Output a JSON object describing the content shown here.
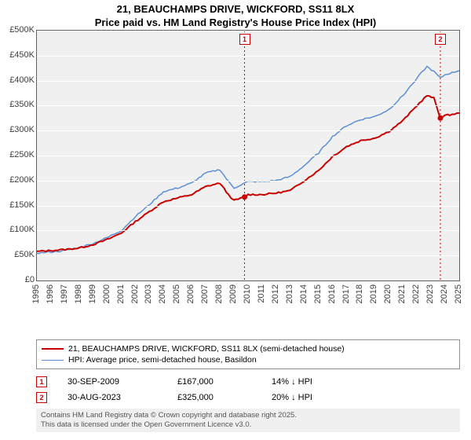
{
  "title_line1": "21, BEAUCHAMPS DRIVE, WICKFORD, SS11 8LX",
  "title_line2": "Price paid vs. HM Land Registry's House Price Index (HPI)",
  "chart": {
    "type": "line",
    "background_color": "#f0f0f0",
    "grid_color": "#ffffff",
    "border_color": "#606060",
    "ylim": [
      0,
      500000
    ],
    "ytick_step": 50000,
    "yticks": [
      "£0",
      "£50K",
      "£100K",
      "£150K",
      "£200K",
      "£250K",
      "£300K",
      "£350K",
      "£400K",
      "£450K",
      "£500K"
    ],
    "xlim": [
      1995,
      2025
    ],
    "xticks": [
      1995,
      1996,
      1997,
      1998,
      1999,
      2000,
      2001,
      2002,
      2003,
      2004,
      2005,
      2006,
      2007,
      2008,
      2009,
      2010,
      2011,
      2012,
      2013,
      2014,
      2015,
      2016,
      2017,
      2018,
      2019,
      2020,
      2021,
      2022,
      2023,
      2024,
      2025
    ],
    "axis_font_size": 11,
    "axis_color": "#404040",
    "series": [
      {
        "name": "price_paid",
        "label": "21, BEAUCHAMPS DRIVE, WICKFORD, SS11 8LX (semi-detached house)",
        "color": "#c80000",
        "line_width": 2,
        "points": [
          [
            1995,
            58000
          ],
          [
            1996,
            60000
          ],
          [
            1997,
            62000
          ],
          [
            1998,
            65000
          ],
          [
            1999,
            72000
          ],
          [
            2000,
            82000
          ],
          [
            2001,
            95000
          ],
          [
            2002,
            118000
          ],
          [
            2003,
            138000
          ],
          [
            2004,
            158000
          ],
          [
            2005,
            165000
          ],
          [
            2006,
            172000
          ],
          [
            2007,
            188000
          ],
          [
            2008,
            195000
          ],
          [
            2008.6,
            172000
          ],
          [
            2009,
            160000
          ],
          [
            2009.75,
            167000
          ],
          [
            2010,
            172000
          ],
          [
            2011,
            172000
          ],
          [
            2012,
            175000
          ],
          [
            2013,
            180000
          ],
          [
            2014,
            200000
          ],
          [
            2015,
            220000
          ],
          [
            2016,
            248000
          ],
          [
            2017,
            268000
          ],
          [
            2018,
            280000
          ],
          [
            2019,
            285000
          ],
          [
            2020,
            298000
          ],
          [
            2021,
            320000
          ],
          [
            2022,
            350000
          ],
          [
            2022.7,
            370000
          ],
          [
            2023.2,
            365000
          ],
          [
            2023.66,
            325000
          ],
          [
            2024,
            330000
          ],
          [
            2025,
            335000
          ]
        ]
      },
      {
        "name": "hpi",
        "label": "HPI: Average price, semi-detached house, Basildon",
        "color": "#5b8fd6",
        "line_width": 1.5,
        "points": [
          [
            1995,
            55000
          ],
          [
            1996,
            57000
          ],
          [
            1997,
            60000
          ],
          [
            1998,
            66000
          ],
          [
            1999,
            74000
          ],
          [
            2000,
            86000
          ],
          [
            2001,
            100000
          ],
          [
            2002,
            128000
          ],
          [
            2003,
            152000
          ],
          [
            2004,
            178000
          ],
          [
            2005,
            185000
          ],
          [
            2006,
            195000
          ],
          [
            2007,
            215000
          ],
          [
            2008,
            222000
          ],
          [
            2008.6,
            198000
          ],
          [
            2009,
            185000
          ],
          [
            2010,
            198000
          ],
          [
            2011,
            198000
          ],
          [
            2012,
            200000
          ],
          [
            2013,
            208000
          ],
          [
            2014,
            230000
          ],
          [
            2015,
            255000
          ],
          [
            2016,
            288000
          ],
          [
            2017,
            310000
          ],
          [
            2018,
            322000
          ],
          [
            2019,
            328000
          ],
          [
            2020,
            342000
          ],
          [
            2021,
            370000
          ],
          [
            2022,
            405000
          ],
          [
            2022.7,
            428000
          ],
          [
            2023.2,
            418000
          ],
          [
            2023.66,
            405000
          ],
          [
            2024,
            412000
          ],
          [
            2025,
            420000
          ]
        ]
      }
    ],
    "vlines": [
      {
        "x": 2009.75,
        "color": "#c80000",
        "label": "1"
      },
      {
        "x": 2023.66,
        "color": "#c80000",
        "label": "2"
      }
    ]
  },
  "legend": {
    "border_color": "#909090",
    "items": [
      {
        "color": "#c80000",
        "width": 2,
        "label_ref": 0
      },
      {
        "color": "#5b8fd6",
        "width": 1.5,
        "label_ref": 1
      }
    ]
  },
  "events": [
    {
      "n": "1",
      "color": "#c80000",
      "date": "30-SEP-2009",
      "price": "£167,000",
      "delta": "14% ↓ HPI"
    },
    {
      "n": "2",
      "color": "#c80000",
      "date": "30-AUG-2023",
      "price": "£325,000",
      "delta": "20% ↓ HPI"
    }
  ],
  "footer_line1": "Contains HM Land Registry data © Crown copyright and database right 2025.",
  "footer_line2": "This data is licensed under the Open Government Licence v3.0."
}
